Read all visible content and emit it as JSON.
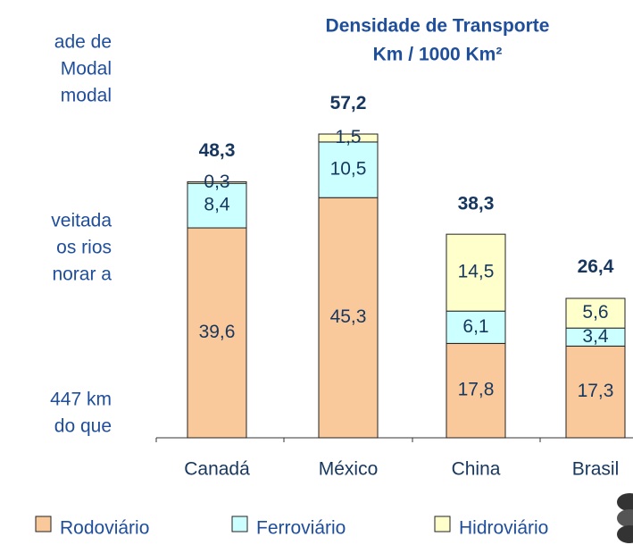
{
  "side_text": [
    "ade de",
    "Modal",
    "modal",
    "veitada",
    "os rios",
    "norar a",
    "447 km",
    "do que"
  ],
  "chart_data": {
    "type": "stacked_bar",
    "title": "Densidade de Transporte",
    "subtitle": "Km / 1000 Km²",
    "categories": [
      "Canadá",
      "México",
      "China",
      "Brasil"
    ],
    "series": [
      {
        "name": "Rodoviário",
        "color": "#f9c99b",
        "values": [
          39.6,
          45.3,
          17.8,
          17.3
        ],
        "value_labels": [
          "39,6",
          "45,3",
          "17,8",
          "17,3"
        ]
      },
      {
        "name": "Ferroviário",
        "color": "#ccffff",
        "values": [
          8.4,
          10.5,
          6.1,
          3.4
        ],
        "value_labels": [
          "8,4",
          "10,5",
          "6,1",
          "3,4"
        ]
      },
      {
        "name": "Hidroviário",
        "color": "#ffffcc",
        "values": [
          0.3,
          1.5,
          14.5,
          5.6
        ],
        "value_labels": [
          "0,3",
          "1,5",
          "14,5",
          "5,6"
        ]
      }
    ],
    "totals": {
      "values": [
        48.3,
        57.2,
        38.3,
        26.4
      ],
      "value_labels": [
        "48,3",
        "57,2",
        "38,3",
        "26,4"
      ]
    },
    "ylim": [
      0,
      60
    ]
  }
}
